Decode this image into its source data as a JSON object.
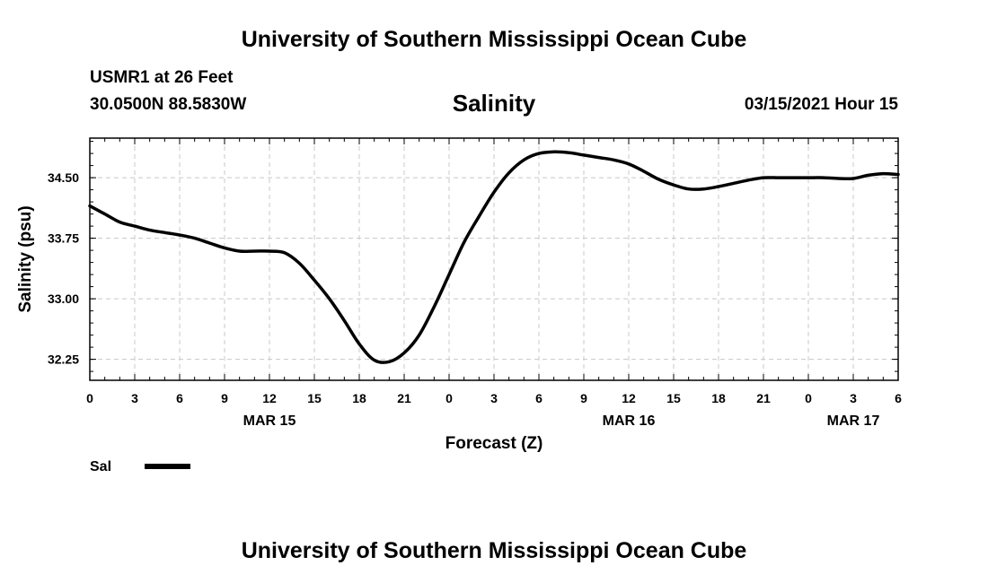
{
  "header": {
    "title_top": "University of Southern Mississippi Ocean Cube",
    "station": "USMR1 at 26 Feet",
    "coords": "30.0500N 88.5830W",
    "datetime": "03/15/2021 Hour 15"
  },
  "footer": {
    "title_bottom": "University of Southern Mississippi Ocean Cube"
  },
  "legend": {
    "label": "Sal",
    "color": "#000000"
  },
  "chart_data": {
    "type": "line",
    "title": "Salinity",
    "xlabel": "Forecast (Z)",
    "ylabel": "Salinity (psu)",
    "x_units": "hours from 2021-03-15 00Z",
    "xlim": [
      0,
      54
    ],
    "ylim": [
      31.99,
      34.99
    ],
    "grid": true,
    "legend_position": "bottom-left",
    "x_tick_labels": [
      "0",
      "3",
      "6",
      "9",
      "12",
      "15",
      "18",
      "21",
      "0",
      "3",
      "6",
      "9",
      "12",
      "15",
      "18",
      "21",
      "0",
      "3",
      "6"
    ],
    "date_labels": [
      {
        "hour": 12,
        "label": "MAR 15"
      },
      {
        "hour": 36,
        "label": "MAR 16"
      },
      {
        "hour": 51,
        "label": "MAR 17"
      }
    ],
    "y_ticks": [
      {
        "value": 32.25,
        "label": "32.25"
      },
      {
        "value": 33.0,
        "label": "33.00"
      },
      {
        "value": 33.75,
        "label": "33.75"
      },
      {
        "value": 34.5,
        "label": "34.50"
      }
    ],
    "series": [
      {
        "name": "Sal",
        "x": [
          0,
          1,
          2,
          3,
          4,
          5,
          6,
          7,
          8,
          9,
          10,
          11,
          12,
          13,
          14,
          15,
          16,
          17,
          18,
          19,
          20,
          21,
          22,
          23,
          24,
          25,
          26,
          27,
          28,
          29,
          30,
          31,
          32,
          33,
          34,
          35,
          36,
          37,
          38,
          39,
          40,
          41,
          42,
          43,
          44,
          45,
          46,
          47,
          48,
          49,
          50,
          51,
          52,
          53,
          54
        ],
        "y": [
          34.15,
          34.05,
          33.95,
          33.9,
          33.85,
          33.82,
          33.79,
          33.75,
          33.69,
          33.63,
          33.59,
          33.59,
          33.59,
          33.57,
          33.44,
          33.23,
          33.0,
          32.73,
          32.44,
          32.24,
          32.22,
          32.33,
          32.55,
          32.9,
          33.3,
          33.7,
          34.02,
          34.32,
          34.56,
          34.72,
          34.8,
          34.82,
          34.81,
          34.78,
          34.75,
          34.72,
          34.67,
          34.58,
          34.48,
          34.41,
          34.36,
          34.36,
          34.39,
          34.43,
          34.47,
          34.5,
          34.5,
          34.5,
          34.5,
          34.5,
          34.49,
          34.49,
          34.53,
          34.55,
          34.54
        ]
      }
    ]
  }
}
